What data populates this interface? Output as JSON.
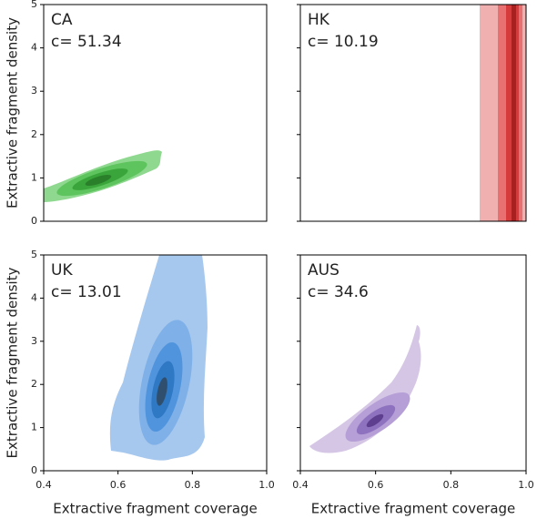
{
  "chart_data": [
    {
      "type": "kde",
      "title": "CA",
      "annotation": "c= 51.34",
      "color": "#3cb043",
      "xlim": [
        0.4,
        1.0
      ],
      "ylim": [
        0,
        5
      ],
      "yticks": [
        0,
        1,
        2,
        3,
        4,
        5
      ],
      "ylabel": "Extractive fragment density"
    },
    {
      "type": "kde",
      "title": "HK",
      "annotation": "c= 10.19",
      "color": "#e0323a",
      "xlim": [
        0.4,
        1.0
      ],
      "ylim": [
        0,
        5
      ],
      "yticks": [
        0,
        1,
        2,
        3,
        4,
        5
      ],
      "ytick_labels": false
    },
    {
      "type": "kde",
      "title": "UK",
      "annotation": "c= 13.01",
      "color": "#3d8fe0",
      "xlim": [
        0.4,
        1.0
      ],
      "ylim": [
        0,
        5
      ],
      "yticks": [
        0,
        1,
        2,
        3,
        4,
        5
      ],
      "xticks": [
        0.4,
        0.6,
        0.8,
        {
          "value": 1.0,
          "label": "1.0"
        }
      ],
      "ylabel": "Extractive fragment density",
      "xlabel": "Extractive fragment coverage"
    },
    {
      "type": "kde",
      "title": "AUS",
      "annotation": "c= 34.6",
      "color": "#8a6bb8",
      "xlim": [
        0.4,
        1.0
      ],
      "ylim": [
        0,
        5
      ],
      "yticks": [
        0,
        1,
        2,
        3,
        4,
        5
      ],
      "ytick_labels": false,
      "xticks": [
        0.4,
        0.6,
        0.8,
        {
          "value": 1.0,
          "label": "1.0"
        }
      ],
      "xlabel": "Extractive fragment coverage"
    }
  ]
}
